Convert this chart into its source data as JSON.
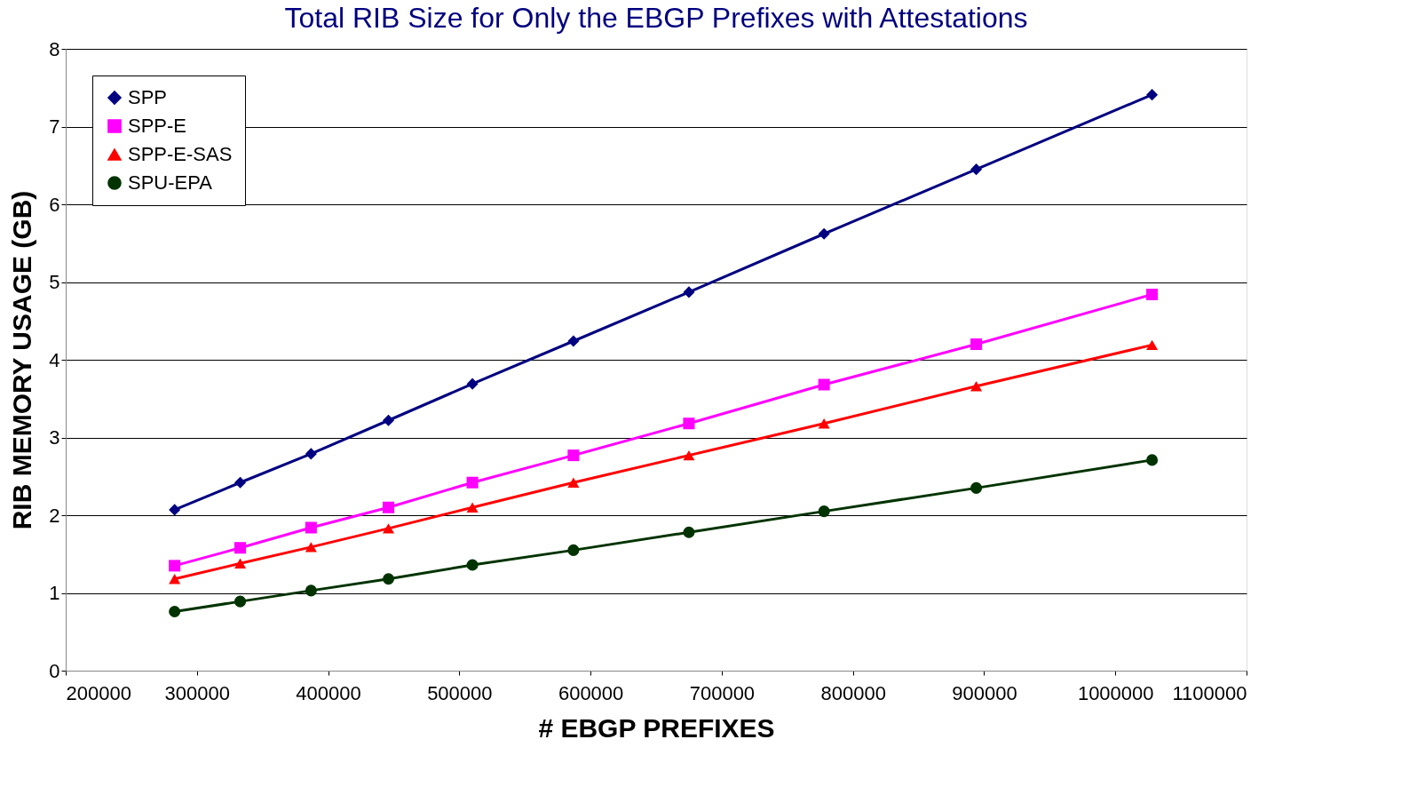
{
  "chart_data": {
    "type": "line",
    "title": "Total RIB Size for Only the EBGP Prefixes with Attestations",
    "xlabel": "# EBGP PREFIXES",
    "ylabel": "RIB MEMORY USAGE (GB)",
    "x": [
      283000,
      333000,
      387000,
      446000,
      510000,
      587000,
      675000,
      778000,
      894000,
      1028000
    ],
    "series": [
      {
        "name": "SPP",
        "color": "#000080",
        "marker": "diamond",
        "values": [
          2.07,
          2.42,
          2.79,
          3.22,
          3.69,
          4.24,
          4.87,
          5.62,
          6.45,
          7.41
        ]
      },
      {
        "name": "SPP-E",
        "color": "#ff00ff",
        "marker": "square",
        "values": [
          1.35,
          1.58,
          1.84,
          2.1,
          2.42,
          2.77,
          3.18,
          3.68,
          4.2,
          4.84
        ]
      },
      {
        "name": "SPP-E-SAS",
        "color": "#ff0000",
        "marker": "triangle",
        "values": [
          1.18,
          1.38,
          1.59,
          1.83,
          2.1,
          2.42,
          2.77,
          3.18,
          3.66,
          4.19
        ]
      },
      {
        "name": "SPU-EPA",
        "color": "#003300",
        "marker": "circle",
        "values": [
          0.76,
          0.89,
          1.03,
          1.18,
          1.36,
          1.55,
          1.78,
          2.05,
          2.35,
          2.71
        ]
      }
    ],
    "xlim": [
      200000,
      1100000
    ],
    "xticks": [
      200000,
      300000,
      400000,
      500000,
      600000,
      700000,
      800000,
      900000,
      1000000,
      1100000
    ],
    "ylim": [
      0,
      8
    ],
    "yticks": [
      0,
      1,
      2,
      3,
      4,
      5,
      6,
      7,
      8
    ],
    "grid": "y",
    "legend": "top left",
    "line_style": "solid"
  }
}
